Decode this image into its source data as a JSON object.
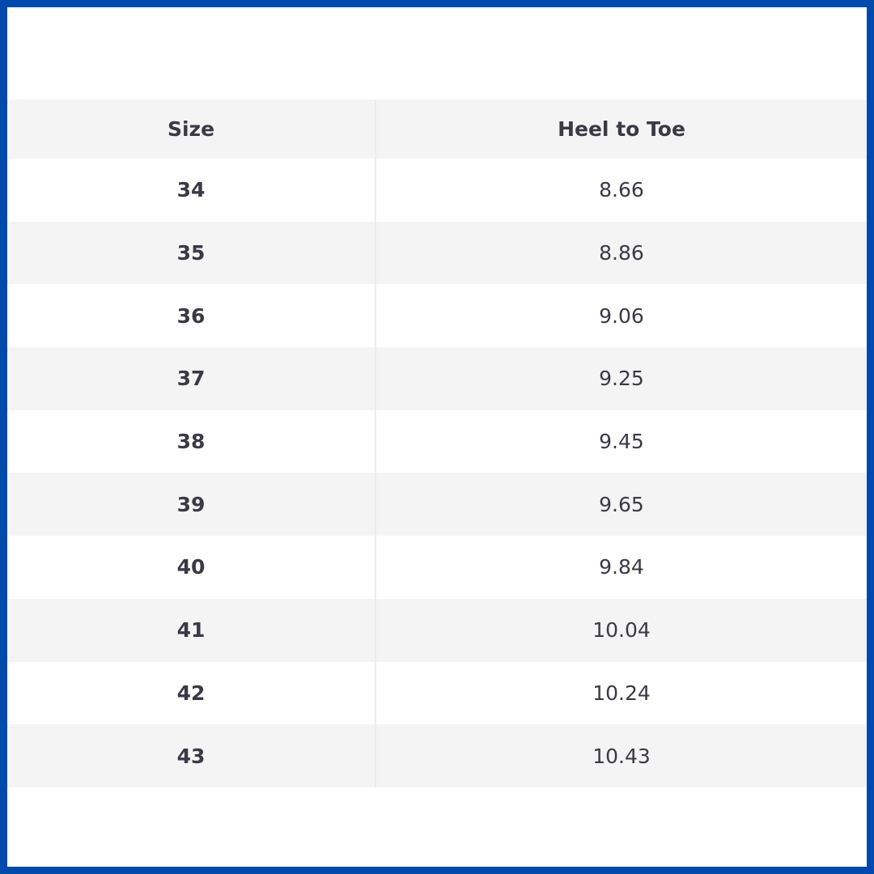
{
  "colors": {
    "border": "#004aad",
    "stripe": "#f4f4f4",
    "text": "#3a3a45"
  },
  "table": {
    "headers": [
      "Size",
      "Heel to Toe"
    ],
    "rows": [
      [
        "34",
        "8.66"
      ],
      [
        "35",
        "8.86"
      ],
      [
        "36",
        "9.06"
      ],
      [
        "37",
        "9.25"
      ],
      [
        "38",
        "9.45"
      ],
      [
        "39",
        "9.65"
      ],
      [
        "40",
        "9.84"
      ],
      [
        "41",
        "10.04"
      ],
      [
        "42",
        "10.24"
      ],
      [
        "43",
        "10.43"
      ]
    ]
  }
}
